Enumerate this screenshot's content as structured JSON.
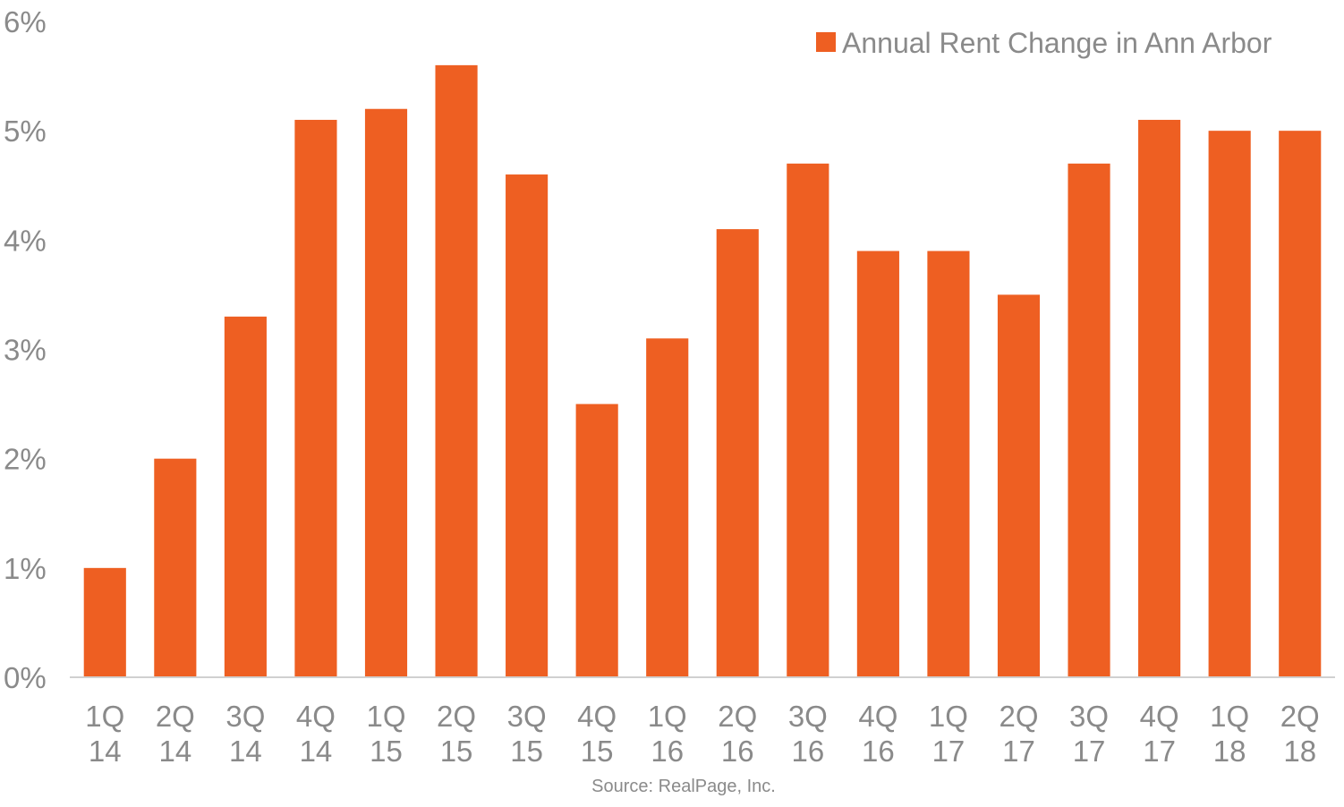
{
  "chart_data": {
    "type": "bar",
    "categories": [
      "1Q 14",
      "2Q 14",
      "3Q 14",
      "4Q 14",
      "1Q 15",
      "2Q 15",
      "3Q 15",
      "4Q 15",
      "1Q 16",
      "2Q 16",
      "3Q 16",
      "4Q 16",
      "1Q 17",
      "2Q 17",
      "3Q 17",
      "4Q 17",
      "1Q 18",
      "2Q 18"
    ],
    "series": [
      {
        "name": "Annual Rent Change in Ann Arbor",
        "values": [
          1.0,
          2.0,
          3.3,
          5.1,
          5.2,
          5.6,
          4.6,
          2.5,
          3.1,
          4.1,
          4.7,
          3.9,
          3.9,
          3.5,
          4.7,
          5.1,
          5.0,
          5.0
        ]
      }
    ],
    "y_ticks": [
      "0%",
      "1%",
      "2%",
      "3%",
      "4%",
      "5%",
      "6%"
    ],
    "ylim": [
      0,
      6
    ],
    "grid": false,
    "legend_position": "top-right",
    "bar_color": "#ee5f22",
    "axis_color": "#d0d0d0",
    "text_color": "#8a8a8a"
  },
  "source": "Source: RealPage, Inc."
}
